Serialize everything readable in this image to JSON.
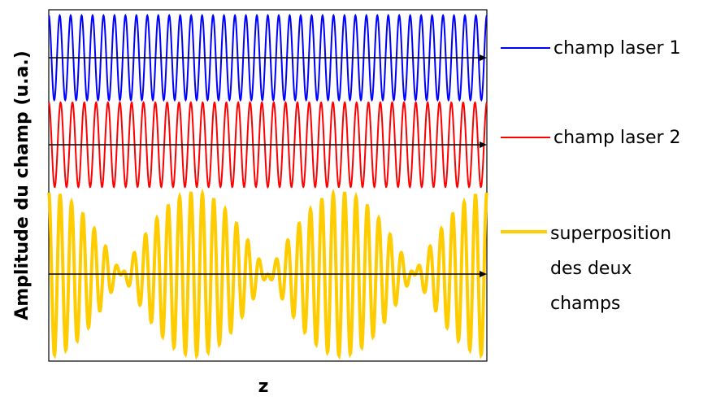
{
  "chart_data": {
    "type": "line",
    "xlabel": "z",
    "ylabel": "Amplitude du champ (u.a.)",
    "grid": false,
    "legend_position": "right",
    "series": [
      {
        "name": "champ laser 1",
        "color": "#0000ff",
        "frequency_cycles": 40,
        "amplitude": 1.0,
        "x_range": [
          0,
          1
        ],
        "formula": "cos(2*pi*40*z)"
      },
      {
        "name": "champ laser 2",
        "color": "#ff0000",
        "frequency_cycles": 37,
        "amplitude": 1.0,
        "x_range": [
          0,
          1
        ],
        "formula": "cos(2*pi*37*z)"
      },
      {
        "name": "superposition des deux champs",
        "color": "#ffcc00",
        "frequency_cycles": 38.5,
        "beat_count": 3,
        "amplitude": 2.0,
        "x_range": [
          0,
          1
        ],
        "formula": "cos(2*pi*40*z)+cos(2*pi*37*z)"
      }
    ],
    "legend": {
      "item1": "champ laser 1",
      "item2": "champ laser 2",
      "item3_lines": [
        "superposition",
        "des deux",
        "champs"
      ]
    }
  }
}
